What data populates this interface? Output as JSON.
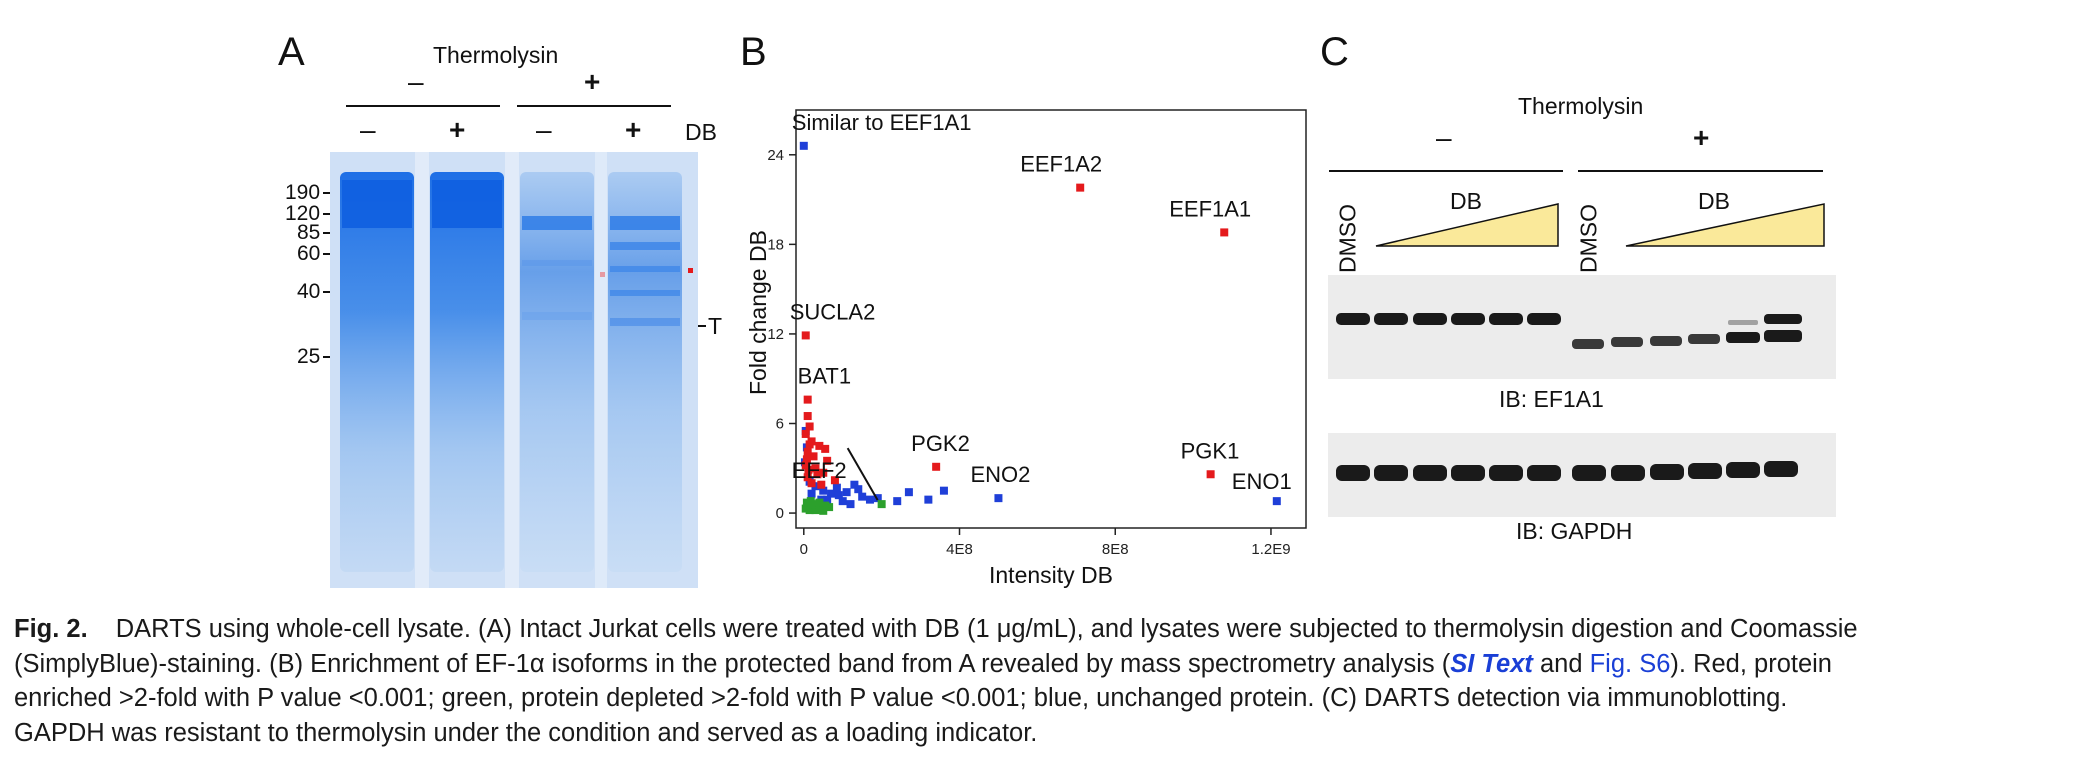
{
  "panel_a": {
    "label": "A",
    "treatment": "Thermolysin",
    "groups": [
      "–",
      "+"
    ],
    "lanes": [
      "–",
      "+",
      "–",
      "+"
    ],
    "lane_row_label": "DB",
    "markers": [
      "190",
      "120",
      "85",
      "60",
      "40",
      "25"
    ],
    "band_label": "T"
  },
  "panel_b": {
    "label": "B",
    "chart_data": {
      "type": "scatter",
      "xlabel": "Intensity DB",
      "ylabel": "Fold change DB",
      "xlim": [
        -20000000,
        1290000000
      ],
      "ylim": [
        -1,
        27
      ],
      "x_ticks": [
        "0",
        "4E8",
        "8E8",
        "1.2E9"
      ],
      "x_tick_values": [
        0,
        400000000,
        800000000,
        1200000000
      ],
      "y_ticks": [
        "0",
        "6",
        "12",
        "18",
        "24"
      ],
      "y_tick_values": [
        0,
        6,
        12,
        18,
        24
      ],
      "colors": {
        "enriched": "#e41a1c",
        "unchanged": "#1f3fd8",
        "depleted": "#2ca02c"
      },
      "labeled_points": [
        {
          "label": "Similar to EEF1A1",
          "x": 0,
          "y": 24.6,
          "group": "unchanged"
        },
        {
          "label": "EEF1A2",
          "x": 710000000,
          "y": 21.8,
          "group": "enriched"
        },
        {
          "label": "EEF1A1",
          "x": 1080000000,
          "y": 18.8,
          "group": "enriched"
        },
        {
          "label": "SUCLA2",
          "x": 5000000,
          "y": 11.9,
          "group": "enriched"
        },
        {
          "label": "BAT1",
          "x": 10000000,
          "y": 7.6,
          "group": "enriched"
        },
        {
          "label": "EEF2",
          "x": 200000000,
          "y": 0.6,
          "group": "depleted"
        },
        {
          "label": "PGK2",
          "x": 340000000,
          "y": 3.1,
          "group": "enriched"
        },
        {
          "label": "ENO2",
          "x": 500000000,
          "y": 1.0,
          "group": "unchanged"
        },
        {
          "label": "PGK1",
          "x": 1045000000,
          "y": 2.6,
          "group": "enriched"
        },
        {
          "label": "ENO1",
          "x": 1215000000,
          "y": 0.8,
          "group": "unchanged"
        }
      ],
      "enriched": [
        [
          10000000,
          6.5
        ],
        [
          15000000,
          5.8
        ],
        [
          5000000,
          5.3
        ],
        [
          20000000,
          4.8
        ],
        [
          40000000,
          4.5
        ],
        [
          10000000,
          4.1
        ],
        [
          25000000,
          3.8
        ],
        [
          60000000,
          3.5
        ],
        [
          5000000,
          3.2
        ],
        [
          30000000,
          3.0
        ],
        [
          50000000,
          2.7
        ],
        [
          10000000,
          2.4
        ],
        [
          80000000,
          2.2
        ],
        [
          20000000,
          2.0
        ],
        [
          45000000,
          1.9
        ],
        [
          15000000,
          4.6
        ],
        [
          35000000,
          2.6
        ],
        [
          8000000,
          3.6
        ],
        [
          55000000,
          4.3
        ],
        [
          12000000,
          2.9
        ]
      ],
      "unchanged": [
        [
          5000000,
          5.5
        ],
        [
          8000000,
          4.4
        ],
        [
          3000000,
          3.4
        ],
        [
          15000000,
          2.1
        ],
        [
          30000000,
          1.8
        ],
        [
          50000000,
          1.5
        ],
        [
          70000000,
          1.3
        ],
        [
          90000000,
          1.2
        ],
        [
          110000000,
          1.4
        ],
        [
          130000000,
          1.9
        ],
        [
          150000000,
          1.1
        ],
        [
          170000000,
          0.9
        ],
        [
          190000000,
          1.0
        ],
        [
          240000000,
          0.8
        ],
        [
          270000000,
          1.4
        ],
        [
          320000000,
          0.9
        ],
        [
          360000000,
          1.5
        ],
        [
          60000000,
          0.9
        ],
        [
          100000000,
          0.8
        ],
        [
          140000000,
          1.6
        ],
        [
          20000000,
          1.3
        ],
        [
          45000000,
          0.9
        ],
        [
          85000000,
          1.7
        ],
        [
          120000000,
          0.6
        ]
      ],
      "depleted": [
        [
          5000000,
          0.3
        ],
        [
          10000000,
          0.5
        ],
        [
          15000000,
          0.2
        ],
        [
          25000000,
          0.4
        ],
        [
          35000000,
          0.6
        ],
        [
          45000000,
          0.3
        ],
        [
          55000000,
          0.5
        ],
        [
          65000000,
          0.4
        ],
        [
          8000000,
          0.7
        ],
        [
          18000000,
          0.8
        ],
        [
          30000000,
          0.2
        ],
        [
          40000000,
          0.7
        ],
        [
          50000000,
          0.15
        ],
        [
          20000000,
          0.55
        ]
      ]
    }
  },
  "panel_c": {
    "label": "C",
    "treatment": "Thermolysin",
    "groups": [
      "–",
      "+"
    ],
    "control_label": "DMSO",
    "gradient_label": "DB",
    "blot1_label": "IB: EF1A1",
    "blot2_label": "IB: GAPDH"
  },
  "caption": {
    "fig_number": "Fig. 2.",
    "line1": "DARTS using whole-cell lysate. (A) Intact Jurkat cells were treated with DB (1 μg/mL), and lysates were subjected to thermolysin digestion and Coomassie",
    "line2_pre": "(SimplyBlue)-staining. (B) Enrichment of EF-1α isoforms in the protected band from A revealed by mass spectrometry analysis (",
    "line2_link1": "SI Text",
    "line2_mid": " and ",
    "line2_link2": "Fig. S6",
    "line2_post": "). Red, protein",
    "line3": "enriched >2-fold with P value <0.001; green, protein depleted >2-fold with P value <0.001; blue, unchanged protein. (C) DARTS detection via immunoblotting.",
    "line4": "GAPDH was resistant to thermolysin under the condition and served as a loading indicator."
  }
}
